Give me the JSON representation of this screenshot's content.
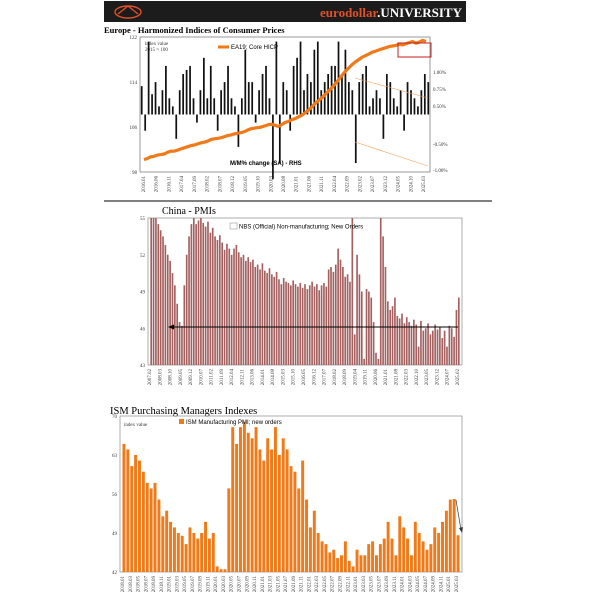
{
  "banner": {
    "brand": "eurodollar.UNIVERSITY"
  },
  "chart_data": [
    {
      "type": "line",
      "title": "Europe - Harmonized Indices of Consumer Prices",
      "left_axis_note": [
        "index value",
        "2015 = 100"
      ],
      "series": [
        {
          "name": "EA19; Core HICP",
          "color": "#f07a1a"
        },
        {
          "name": "M/M% change (SA) - RHS",
          "color": "#111111"
        }
      ],
      "ylim_left": [
        98,
        122
      ],
      "ylim_right": [
        -1.0,
        1.0
      ],
      "y_ticks_left": [
        "122",
        "114",
        "106",
        "98"
      ],
      "y_ticks_right": [
        "1.00%",
        "0.75%",
        "0.50%",
        "-0.50%",
        "-1.00%"
      ],
      "x_ticks": [
        "2016.01",
        "2016.06",
        "2016.11",
        "2017.04",
        "2017.09",
        "2018.02",
        "2018.07",
        "2018.12",
        "2019.05",
        "2019.10",
        "2020.03",
        "2020.08",
        "2021.01",
        "2021.06",
        "2021.11",
        "2022.04",
        "2022.09",
        "2023.02",
        "2023.07",
        "2023.12",
        "2024.05",
        "2024.10",
        "2025.03"
      ],
      "level_values": [
        100.2,
        100.4,
        100.7,
        100.8,
        101,
        101.1,
        101.2,
        101.5,
        101.7,
        101.7,
        101.9,
        102.1,
        102.3,
        102.5,
        102.7,
        102.8,
        103,
        103.2,
        103.3,
        103.5,
        103.8,
        103.9,
        104,
        104.1,
        104.3,
        104.5,
        104.6,
        104.8,
        104.9,
        105,
        105.2,
        105.5,
        105.7,
        105.8,
        105.9,
        106,
        106.2,
        106.4,
        106.5,
        106.3,
        106.1,
        106.4,
        106.8,
        107,
        107.3,
        107.5,
        107.8,
        108.1,
        108.5,
        109,
        109.6,
        110.2,
        110.7,
        111.2,
        111.8,
        112.4,
        113,
        113.7,
        114.4,
        115.2,
        115.9,
        116.5,
        117.1,
        117.6,
        118,
        118.4,
        118.7,
        119,
        119.3,
        119.5,
        119.7,
        119.9,
        120.1,
        120.3,
        120.4,
        120.5,
        120.7,
        120.6,
        120.8,
        121,
        121.2,
        120.9,
        121.1,
        121.4,
        121.2
      ],
      "mm_values": [
        0.35,
        -0.2,
        0.9,
        0.25,
        0.4,
        0.1,
        0.3,
        0.6,
        0.2,
        0.1,
        -0.3,
        0.3,
        0.5,
        0.55,
        0.6,
        0.2,
        -0.1,
        0.3,
        0.7,
        0.2,
        0.6,
        0.2,
        -0.2,
        0.3,
        0.4,
        0.6,
        0.2,
        0.1,
        -0.4,
        0.2,
        0.8,
        0.4,
        0.4,
        -0.1,
        0.3,
        0.5,
        0.6,
        0.2,
        -0.8,
        0.9,
        -0.6,
        0.4,
        0.3,
        -0.2,
        0.6,
        0.7,
        0.9,
        0.3,
        0.5,
        0.4,
        0.8,
        0.9,
        0.3,
        0.4,
        0.5,
        0.6,
        0.6,
        0.9,
        0.5,
        0.8,
        0.4,
        0.3,
        -0.6,
        0.4,
        0.5,
        0.6,
        0.1,
        0.2,
        0.3,
        0.2,
        -0.3,
        0.5,
        0.4,
        0.2,
        0.1,
        0.3,
        -0.2,
        0.4,
        0.3,
        0.2,
        0.1,
        0.3,
        0.5,
        0.4
      ]
    },
    {
      "type": "bar",
      "title": "China - PMIs",
      "series": [
        {
          "name": "NBS (Official) Non-manufacturing; New Orders",
          "color": "#a3605f"
        }
      ],
      "ylim": [
        43,
        55
      ],
      "y_ticks": [
        "55",
        "52",
        "49",
        "46",
        "43"
      ],
      "reference_value": 46.1,
      "x_ticks": [
        "2007.02",
        "2008.03",
        "2008.10",
        "2009.05",
        "2009.12",
        "2010.07",
        "2011.02",
        "2011.09",
        "2012.04",
        "2012.11",
        "2013.06",
        "2014.01",
        "2014.08",
        "2015.03",
        "2015.10",
        "2016.05",
        "2016.12",
        "2017.07",
        "2018.02",
        "2018.09",
        "2019.04",
        "2019.11",
        "2020.06",
        "2021.01",
        "2021.08",
        "2022.03",
        "2022.10",
        "2023.05",
        "2023.12",
        "2024.07",
        "2025.02"
      ],
      "values": [
        55,
        55,
        55,
        54.5,
        54,
        53.5,
        52.8,
        52,
        51.5,
        50.5,
        49.5,
        48,
        46.5,
        46.2,
        49.5,
        52,
        53.5,
        54.5,
        55,
        54.5,
        54.8,
        55,
        54.6,
        54.3,
        54.7,
        53.8,
        54.2,
        53.5,
        53.2,
        53.6,
        53,
        52.4,
        52.9,
        52.5,
        52,
        52.5,
        52.8,
        52.2,
        51.8,
        52,
        51.5,
        51.8,
        51.4,
        51.6,
        51,
        51.2,
        50.8,
        51.3,
        50.7,
        50.5,
        50.9,
        50.4,
        50.2,
        50.6,
        50,
        49.6,
        50.1,
        49.8,
        49.7,
        49.5,
        49.9,
        49.6,
        49.4,
        49.7,
        49.3,
        49.6,
        49.2,
        49.5,
        49.8,
        49.4,
        49.6,
        49.1,
        49.5,
        49.7,
        49.4,
        50.8,
        51,
        50.6,
        51.2,
        52.5,
        51.6,
        51,
        50.2,
        50.4,
        49.8,
        55,
        45.5,
        52,
        50.4,
        49,
        43.5,
        49.2,
        49,
        48.5,
        46.5,
        44,
        43.5,
        55,
        53.5,
        51,
        48.2,
        47.5,
        47.8,
        48.5,
        47,
        46.8,
        47.2,
        46.4,
        46.9,
        46.5,
        46.2,
        46.7,
        46.3,
        44.5,
        46.6,
        45.8,
        46,
        46.4,
        45.5,
        45.8,
        46.3,
        45.9,
        46.1,
        45.2,
        45.8,
        44.5,
        46.2,
        46,
        45.3,
        47.5,
        48.5
      ]
    },
    {
      "type": "bar",
      "title": "ISM Purchasing Managers Indexes",
      "left_axis_note": "index value",
      "series": [
        {
          "name": "ISM Manufacturing PMI; new orders",
          "color": "#f07a1a"
        }
      ],
      "ylim": [
        42,
        70
      ],
      "y_ticks": [
        "70",
        "63",
        "56",
        "49",
        "42"
      ],
      "x_ticks": [
        "2018.01",
        "2018.03",
        "2018.05",
        "2018.07",
        "2018.09",
        "2018.11",
        "2019.01",
        "2019.03",
        "2019.05",
        "2019.07",
        "2019.09",
        "2019.11",
        "2020.01",
        "2020.03",
        "2020.05",
        "2020.07",
        "2020.09",
        "2020.11",
        "2021.01",
        "2021.03",
        "2021.05",
        "2021.07",
        "2021.09",
        "2021.11",
        "2022.01",
        "2022.03",
        "2022.05",
        "2022.07",
        "2022.09",
        "2022.11",
        "2023.01",
        "2023.03",
        "2023.05",
        "2023.07",
        "2023.09",
        "2023.11",
        "2024.01",
        "2024.03",
        "2024.05",
        "2024.07",
        "2024.09",
        "2024.11",
        "2025.01",
        "2025.03"
      ],
      "values": [
        65,
        64,
        61,
        63,
        62,
        60,
        58,
        57,
        58,
        55,
        52,
        53,
        51,
        50,
        49,
        48.5,
        47,
        50,
        49,
        48,
        49,
        51,
        48,
        49,
        43,
        42.5,
        42.5,
        57,
        68,
        65,
        68,
        69,
        67,
        66,
        68,
        64,
        62,
        66,
        64,
        68,
        63,
        66,
        64,
        61,
        60,
        57,
        62,
        55,
        50,
        53,
        49,
        47.5,
        47,
        45.5,
        46,
        44.5,
        45,
        47.5,
        44,
        43,
        46,
        45,
        45,
        47,
        47.5,
        45,
        47,
        48,
        51,
        48,
        45,
        52,
        50,
        48,
        45,
        51,
        49,
        47.5,
        46,
        47,
        50,
        49,
        51,
        53,
        55,
        55.1,
        48.6
      ]
    }
  ]
}
